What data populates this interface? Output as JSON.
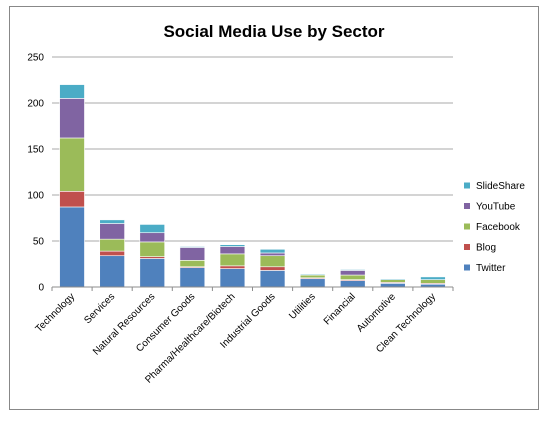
{
  "chart_data": {
    "type": "bar",
    "stacked": true,
    "title": "Social Media Use by Sector",
    "xlabel": "",
    "ylabel": "",
    "ylim": [
      0,
      250
    ],
    "yticks": [
      "0",
      "50",
      "100",
      "150",
      "200",
      "250"
    ],
    "grid": true,
    "legend_position": "right",
    "categories": [
      "Technology",
      "Services",
      "Natural Resources",
      "Consumer Goods",
      "Pharma/Healthcare/Biotech",
      "Industrial Goods",
      "Utilities",
      "Financial",
      "Automotive",
      "Clean Technology"
    ],
    "series": [
      {
        "name": "Twitter",
        "color": "#4f81bd",
        "values": [
          87,
          34,
          31,
          21,
          20,
          18,
          9,
          7,
          4,
          3
        ]
      },
      {
        "name": "Blog",
        "color": "#c0504d",
        "values": [
          17,
          5,
          2,
          1,
          3,
          4,
          1,
          1,
          1,
          1
        ]
      },
      {
        "name": "Facebook",
        "color": "#9bbb59",
        "values": [
          58,
          13,
          16,
          7,
          13,
          12,
          3,
          5,
          3,
          4
        ]
      },
      {
        "name": "YouTube",
        "color": "#8064a2",
        "values": [
          43,
          17,
          10,
          14,
          8,
          3,
          0,
          5,
          0,
          0
        ]
      },
      {
        "name": "SlideShare",
        "color": "#4bacc6",
        "values": [
          15,
          4,
          9,
          1,
          2,
          4,
          1,
          1,
          1,
          3
        ]
      }
    ]
  }
}
